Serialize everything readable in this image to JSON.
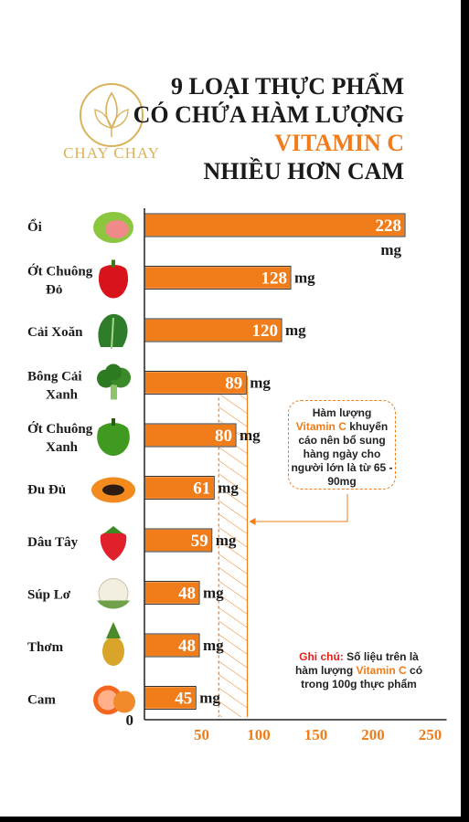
{
  "brand": "CHAY CHAY",
  "title": {
    "line1": "9 LOẠI THỰC PHẨM",
    "line2": "CÓ CHỨA HÀM LƯỢNG",
    "line3": "VITAMIN C",
    "line4": "NHIỀU HƠN CAM"
  },
  "callout": {
    "part1": "Hàm lượng",
    "highlight": "Vitamin C",
    "part2": "khuyến cáo nên bổ sung hàng ngày cho người lớn là từ 65 - 90mg"
  },
  "note": {
    "label": "Ghi chú:",
    "part1": "Số liệu trên là hàm lượng",
    "highlight": "Vitamin C",
    "part2": "có trong 100g thực phẩm"
  },
  "colors": {
    "bar": "#f07c1a",
    "accent": "#f07c1a",
    "gold": "#d9b25a",
    "text": "#1a1a1a",
    "note_label": "#e5231b"
  },
  "chart_data": {
    "type": "bar",
    "orientation": "horizontal",
    "unit": "mg",
    "categories": [
      "Ổi",
      "Ớt Chuông Đỏ",
      "Cải Xoăn",
      "Bông Cải Xanh",
      "Ớt Chuông Xanh",
      "Đu Đủ",
      "Dâu Tây",
      "Súp Lơ",
      "Thơm",
      "Cam"
    ],
    "values": [
      228,
      128,
      120,
      89,
      80,
      61,
      59,
      48,
      48,
      45
    ],
    "icons": [
      "guava-icon",
      "red-bell-pepper-icon",
      "kale-icon",
      "broccoli-icon",
      "green-bell-pepper-icon",
      "papaya-icon",
      "strawberry-icon",
      "cauliflower-icon",
      "pineapple-icon",
      "orange-icon"
    ],
    "x_ticks": [
      0,
      50,
      100,
      150,
      200,
      250
    ],
    "xlim": [
      0,
      250
    ],
    "recommended_range": [
      65,
      90
    ]
  }
}
